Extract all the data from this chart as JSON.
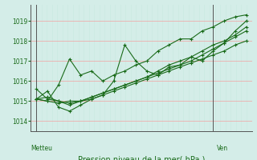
{
  "title": "Pression niveau de la mer( hPa )",
  "xlabel_left": "Metteu",
  "xlabel_right": "Ven",
  "ylabel_ticks": [
    1014,
    1015,
    1016,
    1017,
    1018,
    1019
  ],
  "ylim": [
    1013.5,
    1019.8
  ],
  "background_color": "#d4ede8",
  "grid_color": "#f4a0a0",
  "line_color": "#1a6b1a",
  "marker_color": "#1a6b1a",
  "series": [
    [
      1015.1,
      1015.0,
      1015.8,
      1017.1,
      1016.3,
      1016.5,
      1016.0,
      1016.3,
      1016.5,
      1016.8,
      1017.0,
      1017.5,
      1017.8,
      1018.1,
      1018.1,
      1018.5,
      1018.7,
      1019.0,
      1019.2,
      1019.3
    ],
    [
      1015.1,
      1015.5,
      1014.7,
      1014.5,
      1014.8,
      1015.1,
      1015.3,
      1016.0,
      1017.8,
      1017.0,
      1016.5,
      1016.3,
      1016.7,
      1016.8,
      1017.2,
      1017.0,
      1017.5,
      1017.9,
      1018.5,
      1019.0
    ],
    [
      1015.1,
      1015.2,
      1015.0,
      1014.9,
      1015.0,
      1015.1,
      1015.3,
      1015.5,
      1015.7,
      1015.9,
      1016.1,
      1016.3,
      1016.5,
      1016.7,
      1016.9,
      1017.1,
      1017.3,
      1017.5,
      1017.8,
      1018.0
    ],
    [
      1015.1,
      1015.0,
      1014.9,
      1015.0,
      1015.0,
      1015.2,
      1015.4,
      1015.6,
      1015.8,
      1016.0,
      1016.2,
      1016.4,
      1016.6,
      1016.8,
      1017.0,
      1017.3,
      1017.6,
      1017.9,
      1018.2,
      1018.5
    ],
    [
      1015.6,
      1015.1,
      1015.0,
      1014.8,
      1015.0,
      1015.2,
      1015.4,
      1015.6,
      1015.8,
      1016.0,
      1016.2,
      1016.5,
      1016.8,
      1017.0,
      1017.2,
      1017.5,
      1017.8,
      1018.0,
      1018.3,
      1018.7
    ]
  ],
  "n_points": 20,
  "vline_positions": [
    0,
    16
  ],
  "vline_color": "#555555",
  "minor_grid_color": "#c8e8e0",
  "marker": "+"
}
